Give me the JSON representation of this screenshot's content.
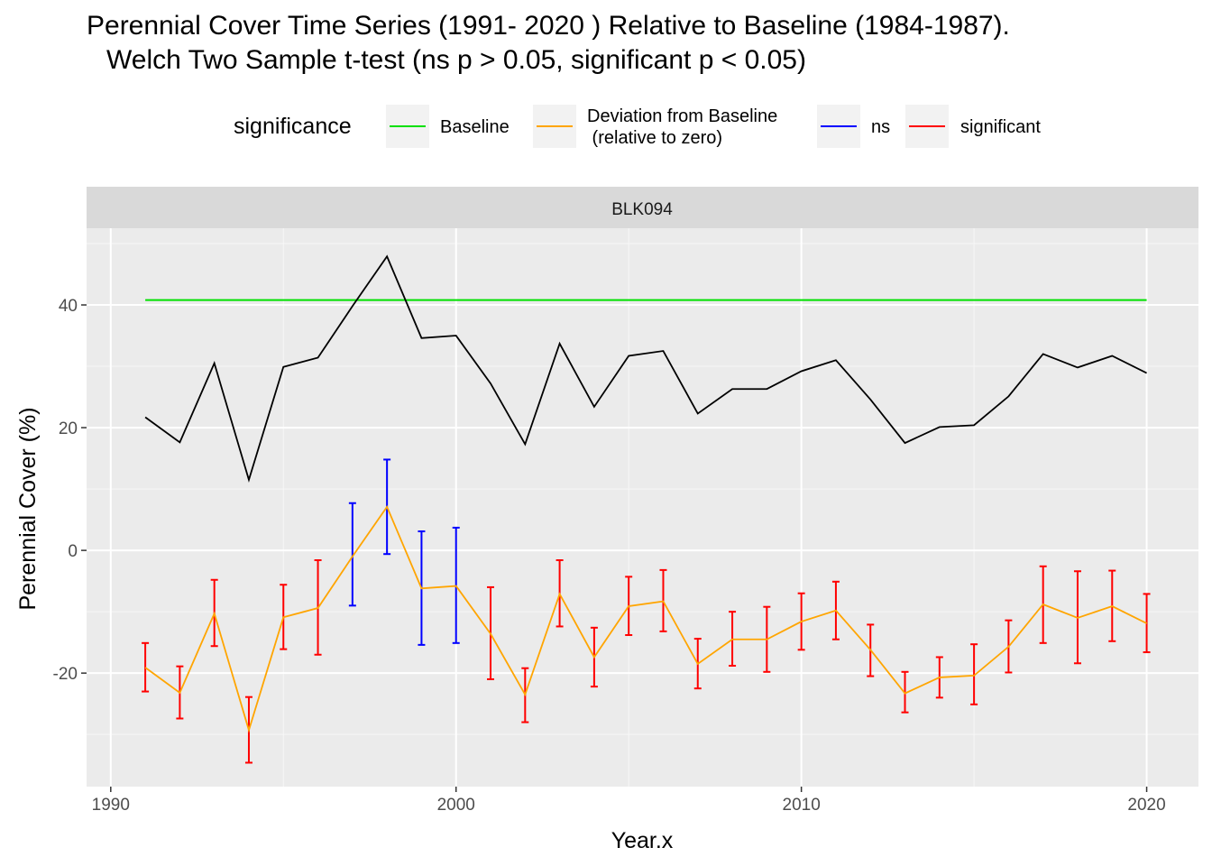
{
  "title_line1": "Perennial Cover Time Series (1991- 2020 ) Relative to Baseline (1984-1987).",
  "title_line2": "Welch Two Sample t-test (ns p > 0.05, significant p < 0.05)",
  "legend": {
    "title": "significance",
    "items": [
      {
        "label": "Baseline",
        "color": "#00e000"
      },
      {
        "label": "Deviation from Baseline\n (relative to zero)",
        "color": "#ffa500"
      },
      {
        "label": "ns",
        "color": "#0000ff"
      },
      {
        "label": "significant",
        "color": "#ff0000"
      }
    ]
  },
  "chart_data": {
    "type": "line",
    "facet_label": "BLK094",
    "xlabel": "Year.x",
    "ylabel": "Perennial Cover (%)",
    "xlim": [
      1989.3,
      2021.5
    ],
    "ylim": [
      -38.5,
      52.5
    ],
    "x_ticks": [
      1990,
      2000,
      2010,
      2020
    ],
    "y_ticks": [
      -20,
      0,
      20,
      40
    ],
    "colors": {
      "cover": "#000000",
      "baseline": "#00e000",
      "deviation": "#ffa500",
      "ns": "#0000ff",
      "significant": "#ff0000"
    },
    "baseline": {
      "value": 40.8,
      "x_start": 1991,
      "x_end": 2020
    },
    "years": [
      1991,
      1992,
      1993,
      1994,
      1995,
      1996,
      1997,
      1998,
      1999,
      2000,
      2001,
      2002,
      2003,
      2004,
      2005,
      2006,
      2007,
      2008,
      2009,
      2010,
      2011,
      2012,
      2013,
      2014,
      2015,
      2016,
      2017,
      2018,
      2019,
      2020
    ],
    "cover": [
      21.7,
      17.6,
      30.5,
      11.5,
      29.9,
      31.4,
      39.8,
      47.9,
      34.6,
      35.0,
      27.2,
      17.3,
      33.7,
      23.4,
      31.7,
      32.5,
      22.3,
      26.3,
      26.3,
      29.2,
      31.0,
      24.6,
      17.5,
      20.1,
      20.4,
      25.1,
      32.0,
      29.8,
      31.7,
      28.9
    ],
    "deviation": [
      -19.1,
      -23.2,
      -10.3,
      -29.3,
      -10.9,
      -9.4,
      -1.0,
      7.1,
      -6.2,
      -5.8,
      -13.6,
      -23.5,
      -7.1,
      -17.4,
      -9.1,
      -8.3,
      -18.5,
      -14.5,
      -14.5,
      -11.6,
      -9.8,
      -16.2,
      -23.3,
      -20.7,
      -20.4,
      -15.7,
      -8.8,
      -11.0,
      -9.1,
      -11.9
    ],
    "err_low": [
      -23.0,
      -27.4,
      -15.6,
      -34.6,
      -16.1,
      -17.0,
      -9.0,
      -0.6,
      -15.4,
      -15.1,
      -21.0,
      -28.0,
      -12.4,
      -22.2,
      -13.8,
      -13.2,
      -22.5,
      -18.8,
      -19.8,
      -16.2,
      -14.5,
      -20.5,
      -26.4,
      -24.0,
      -25.1,
      -19.9,
      -15.1,
      -18.4,
      -14.8,
      -16.6
    ],
    "err_high": [
      -15.1,
      -18.9,
      -4.8,
      -23.9,
      -5.6,
      -1.6,
      7.7,
      14.8,
      3.1,
      3.7,
      -6.0,
      -19.2,
      -1.6,
      -12.6,
      -4.3,
      -3.2,
      -14.4,
      -10.0,
      -9.2,
      -7.0,
      -5.1,
      -12.1,
      -19.8,
      -17.4,
      -15.3,
      -11.4,
      -2.6,
      -3.4,
      -3.3,
      -7.1
    ],
    "significance": [
      "significant",
      "significant",
      "significant",
      "significant",
      "significant",
      "significant",
      "ns",
      "ns",
      "ns",
      "ns",
      "significant",
      "significant",
      "significant",
      "significant",
      "significant",
      "significant",
      "significant",
      "significant",
      "significant",
      "significant",
      "significant",
      "significant",
      "significant",
      "significant",
      "significant",
      "significant",
      "significant",
      "significant",
      "significant",
      "significant"
    ]
  }
}
